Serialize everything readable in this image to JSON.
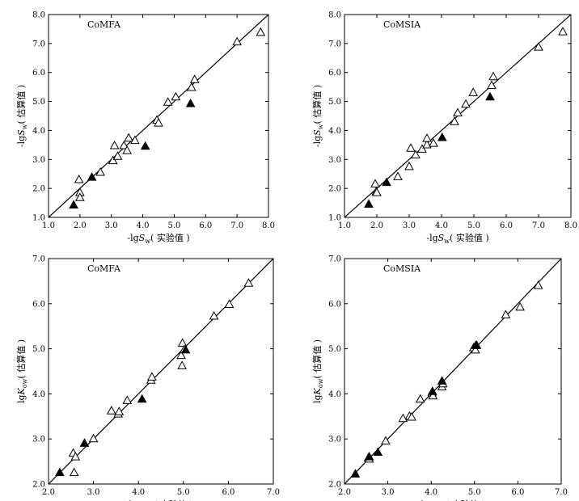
{
  "chart_data": [
    {
      "type": "scatter",
      "title": "CoMFA",
      "xlabel": {
        "prefix": "-lg",
        "main": "S",
        "sub": "w",
        "suffix": "( 实验值 )"
      },
      "ylabel": {
        "prefix": "-lg",
        "main": "S",
        "sub": "w",
        "suffix": "( 估算值 )"
      },
      "xlim": [
        1.0,
        8.0
      ],
      "ylim": [
        1.0,
        8.0
      ],
      "xticks": [
        "1.0",
        "2.0",
        "3.0",
        "4.0",
        "5.0",
        "6.0",
        "7.0",
        "8.0"
      ],
      "yticks": [
        "1.0",
        "2.0",
        "3.0",
        "4.0",
        "5.0",
        "6.0",
        "7.0",
        "8.0"
      ],
      "line": [
        [
          1.0,
          1.0
        ],
        [
          8.0,
          8.0
        ]
      ],
      "series": [
        {
          "marker": "open-triangle",
          "points": [
            [
              1.97,
              2.3
            ],
            [
              2.0,
              1.85
            ],
            [
              2.0,
              1.68
            ],
            [
              2.65,
              2.55
            ],
            [
              3.05,
              2.95
            ],
            [
              3.1,
              3.47
            ],
            [
              3.2,
              3.1
            ],
            [
              3.4,
              3.47
            ],
            [
              3.5,
              3.3
            ],
            [
              3.55,
              3.73
            ],
            [
              3.75,
              3.65
            ],
            [
              4.45,
              4.35
            ],
            [
              4.5,
              4.25
            ],
            [
              4.8,
              4.97
            ],
            [
              5.05,
              5.15
            ],
            [
              5.55,
              5.48
            ],
            [
              5.65,
              5.75
            ],
            [
              7.0,
              7.05
            ],
            [
              7.75,
              7.38
            ]
          ]
        },
        {
          "marker": "filled-triangle",
          "points": [
            [
              1.8,
              1.42
            ],
            [
              2.38,
              2.38
            ],
            [
              4.08,
              3.45
            ],
            [
              5.52,
              4.92
            ]
          ]
        }
      ]
    },
    {
      "type": "scatter",
      "title": "CoMSIA",
      "xlabel": {
        "prefix": "-lg",
        "main": "S",
        "sub": "w",
        "suffix": "( 实验值 )"
      },
      "ylabel": {
        "prefix": "-lg",
        "main": "S",
        "sub": "w",
        "suffix": "( 估算值 )"
      },
      "xlim": [
        1.0,
        8.0
      ],
      "ylim": [
        1.0,
        8.0
      ],
      "xticks": [
        "1.0",
        "2.0",
        "3.0",
        "4.0",
        "5.0",
        "6.0",
        "7.0",
        "8.0"
      ],
      "yticks": [
        "1.0",
        "2.0",
        "3.0",
        "4.0",
        "5.0",
        "6.0",
        "7.0",
        "8.0"
      ],
      "line": [
        [
          1.0,
          1.0
        ],
        [
          8.0,
          8.0
        ]
      ],
      "series": [
        {
          "marker": "open-triangle",
          "points": [
            [
              1.95,
              2.15
            ],
            [
              1.98,
              1.88
            ],
            [
              2.0,
              1.85
            ],
            [
              2.65,
              2.4
            ],
            [
              3.0,
              2.75
            ],
            [
              3.05,
              3.38
            ],
            [
              3.2,
              3.15
            ],
            [
              3.4,
              3.35
            ],
            [
              3.55,
              3.5
            ],
            [
              3.55,
              3.72
            ],
            [
              3.75,
              3.55
            ],
            [
              4.4,
              4.3
            ],
            [
              4.5,
              4.6
            ],
            [
              4.75,
              4.9
            ],
            [
              4.98,
              5.3
            ],
            [
              5.55,
              5.55
            ],
            [
              5.6,
              5.85
            ],
            [
              7.0,
              6.87
            ],
            [
              7.75,
              7.4
            ]
          ]
        },
        {
          "marker": "filled-triangle",
          "points": [
            [
              1.75,
              1.45
            ],
            [
              2.3,
              2.2
            ],
            [
              4.02,
              3.75
            ],
            [
              5.5,
              5.15
            ]
          ]
        }
      ]
    },
    {
      "type": "scatter",
      "title": "CoMFA",
      "xlabel": {
        "prefix": "lg",
        "main": "K",
        "sub": "ow",
        "suffix": "( 实验值 )"
      },
      "ylabel": {
        "prefix": "lg",
        "main": "K",
        "sub": "ow",
        "suffix": "( 估算值 )"
      },
      "xlim": [
        2.0,
        7.0
      ],
      "ylim": [
        2.0,
        7.0
      ],
      "xticks": [
        "2.0",
        "3.0",
        "4.0",
        "5.0",
        "6.0",
        "7.0"
      ],
      "yticks": [
        "2.0",
        "3.0",
        "4.0",
        "5.0",
        "6.0",
        "7.0"
      ],
      "line": [
        [
          2.0,
          2.0
        ],
        [
          7.0,
          7.0
        ]
      ],
      "series": [
        {
          "marker": "open-triangle",
          "points": [
            [
              2.55,
              2.68
            ],
            [
              2.57,
              2.25
            ],
            [
              2.6,
              2.6
            ],
            [
              3.0,
              3.0
            ],
            [
              3.4,
              3.62
            ],
            [
              3.55,
              3.55
            ],
            [
              3.57,
              3.6
            ],
            [
              3.75,
              3.85
            ],
            [
              4.28,
              4.3
            ],
            [
              4.3,
              4.37
            ],
            [
              4.95,
              4.85
            ],
            [
              4.97,
              4.62
            ],
            [
              4.98,
              5.12
            ],
            [
              5.02,
              4.98
            ],
            [
              5.68,
              5.72
            ],
            [
              6.02,
              5.98
            ],
            [
              6.45,
              6.45
            ]
          ]
        },
        {
          "marker": "filled-triangle",
          "points": [
            [
              2.25,
              2.25
            ],
            [
              2.8,
              2.9
            ],
            [
              4.08,
              3.88
            ],
            [
              5.05,
              4.97
            ]
          ]
        }
      ]
    },
    {
      "type": "scatter",
      "title": "CoMSIA",
      "xlabel": {
        "prefix": "lg",
        "main": "K",
        "sub": "ow",
        "suffix": "( 实验值 )"
      },
      "ylabel": {
        "prefix": "lg",
        "main": "K",
        "sub": "ow",
        "suffix": "( 估算值 )"
      },
      "xlim": [
        2.0,
        7.0
      ],
      "ylim": [
        2.0,
        7.0
      ],
      "xticks": [
        "2.0",
        "3.0",
        "4.0",
        "5.0",
        "6.0",
        "7.0"
      ],
      "yticks": [
        "2.0",
        "3.0",
        "4.0",
        "5.0",
        "6.0",
        "7.0"
      ],
      "line": [
        [
          2.0,
          2.0
        ],
        [
          7.0,
          7.0
        ]
      ],
      "series": [
        {
          "marker": "open-triangle",
          "points": [
            [
              2.55,
              2.57
            ],
            [
              2.57,
              2.55
            ],
            [
              2.95,
              2.95
            ],
            [
              3.35,
              3.45
            ],
            [
              3.5,
              3.5
            ],
            [
              3.55,
              3.48
            ],
            [
              3.75,
              3.88
            ],
            [
              4.02,
              4.02
            ],
            [
              4.04,
              3.95
            ],
            [
              4.25,
              4.15
            ],
            [
              4.27,
              4.22
            ],
            [
              4.98,
              5.02
            ],
            [
              5.02,
              4.97
            ],
            [
              5.05,
              5.07
            ],
            [
              5.72,
              5.75
            ],
            [
              6.05,
              5.92
            ],
            [
              6.47,
              6.4
            ]
          ]
        },
        {
          "marker": "filled-triangle",
          "points": [
            [
              2.25,
              2.22
            ],
            [
              2.57,
              2.6
            ],
            [
              2.77,
              2.7
            ],
            [
              4.03,
              4.05
            ],
            [
              4.25,
              4.28
            ],
            [
              5.03,
              5.07
            ]
          ]
        }
      ]
    }
  ]
}
